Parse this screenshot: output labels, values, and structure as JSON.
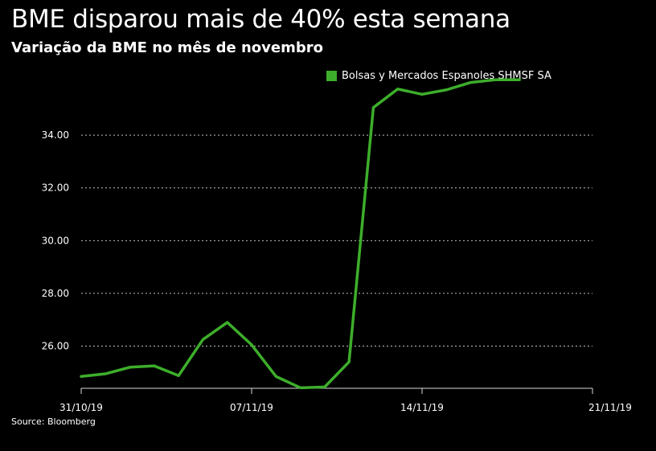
{
  "chart_data": {
    "type": "line",
    "title": "BME disparou mais de 40% esta semana",
    "subtitle": "Variação da BME no mês de novembro",
    "source": "Source: Bloomberg",
    "x_tick_labels": [
      "31/10/19",
      "07/11/19",
      "14/11/19",
      "21/11/19"
    ],
    "x_tick_indices": [
      0,
      7,
      14,
      21
    ],
    "y_ticks": [
      26,
      28,
      30,
      32,
      34
    ],
    "y_tick_labels": [
      "26.00",
      "28.00",
      "30.00",
      "32.00",
      "34.00"
    ],
    "ylim": [
      24.4,
      36.2
    ],
    "grid": true,
    "legend_placement": "top-right",
    "series": [
      {
        "name": "Bolsas y Mercados Espanoles SHMSF SA",
        "color": "#3dae2b",
        "x_index": [
          0,
          1,
          2,
          3,
          4,
          5,
          6,
          7,
          8,
          9,
          10,
          11,
          12,
          13,
          14,
          15,
          16,
          17,
          18
        ],
        "values": [
          24.85,
          24.95,
          25.2,
          25.25,
          24.88,
          26.25,
          26.9,
          26.05,
          24.85,
          24.42,
          24.45,
          25.4,
          35.05,
          35.75,
          35.55,
          35.72,
          36.0,
          36.1,
          36.1
        ]
      }
    ]
  }
}
